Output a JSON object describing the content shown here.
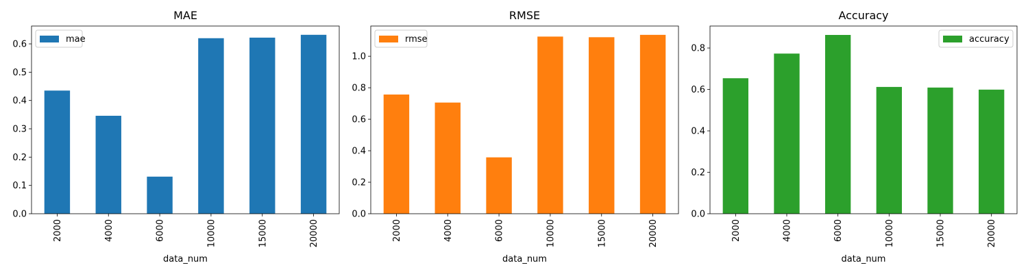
{
  "chart_data": [
    {
      "type": "bar",
      "title": "MAE",
      "xlabel": "data_num",
      "ylabel": "",
      "categories": [
        "2000",
        "4000",
        "6000",
        "10000",
        "15000",
        "20000"
      ],
      "series": [
        {
          "name": "mae",
          "values": [
            0.435,
            0.346,
            0.131,
            0.62,
            0.622,
            0.632
          ]
        }
      ],
      "ylim": [
        0,
        0.663
      ],
      "yticks": [
        0.0,
        0.1,
        0.2,
        0.3,
        0.4,
        0.5,
        0.6
      ],
      "ytick_labels": [
        "0.0",
        "0.1",
        "0.2",
        "0.3",
        "0.4",
        "0.5",
        "0.6"
      ],
      "color": "#1f77b4",
      "legend_position": "upper-left",
      "grid": false
    },
    {
      "type": "bar",
      "title": "RMSE",
      "xlabel": "data_num",
      "ylabel": "",
      "categories": [
        "2000",
        "4000",
        "6000",
        "10000",
        "15000",
        "20000"
      ],
      "series": [
        {
          "name": "rmse",
          "values": [
            0.757,
            0.706,
            0.358,
            1.125,
            1.121,
            1.136
          ]
        }
      ],
      "ylim": [
        0,
        1.192
      ],
      "yticks": [
        0.0,
        0.2,
        0.4,
        0.6,
        0.8,
        1.0
      ],
      "ytick_labels": [
        "0.0",
        "0.2",
        "0.4",
        "0.6",
        "0.8",
        "1.0"
      ],
      "color": "#ff7f0e",
      "legend_position": "upper-left",
      "grid": false
    },
    {
      "type": "bar",
      "title": "Accuracy",
      "xlabel": "data_num",
      "ylabel": "",
      "categories": [
        "2000",
        "4000",
        "6000",
        "10000",
        "15000",
        "20000"
      ],
      "series": [
        {
          "name": "accuracy",
          "values": [
            0.654,
            0.773,
            0.863,
            0.612,
            0.609,
            0.599
          ]
        }
      ],
      "ylim": [
        0,
        0.906
      ],
      "yticks": [
        0.0,
        0.2,
        0.4,
        0.6,
        0.8
      ],
      "ytick_labels": [
        "0.0",
        "0.2",
        "0.4",
        "0.6",
        "0.8"
      ],
      "color": "#2ca02c",
      "legend_position": "upper-right",
      "grid": false
    }
  ]
}
